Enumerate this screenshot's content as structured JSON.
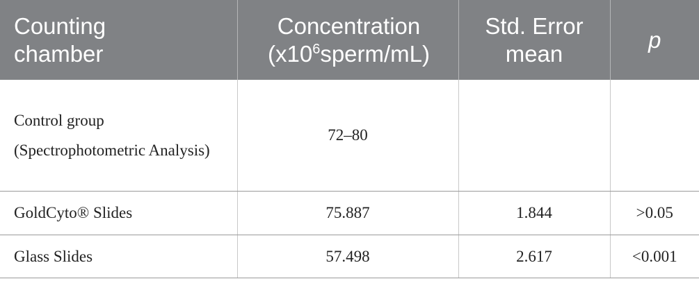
{
  "table": {
    "header": [
      {
        "text": "Counting chamber"
      },
      {
        "text": "Concentration (x10",
        "sup": "6",
        "text_after": "sperm/mL)"
      },
      {
        "text": "Std. Error mean"
      },
      {
        "text": "p"
      }
    ],
    "rows": [
      [
        "Control group (Spectrophotometric Analysis)",
        "72–80"
      ],
      [
        "GoldCyto® Slides",
        "75.887",
        "1.844",
        ">0.05"
      ],
      [
        "Glass Slides",
        "57.498",
        "2.617",
        "<0.001"
      ]
    ]
  }
}
